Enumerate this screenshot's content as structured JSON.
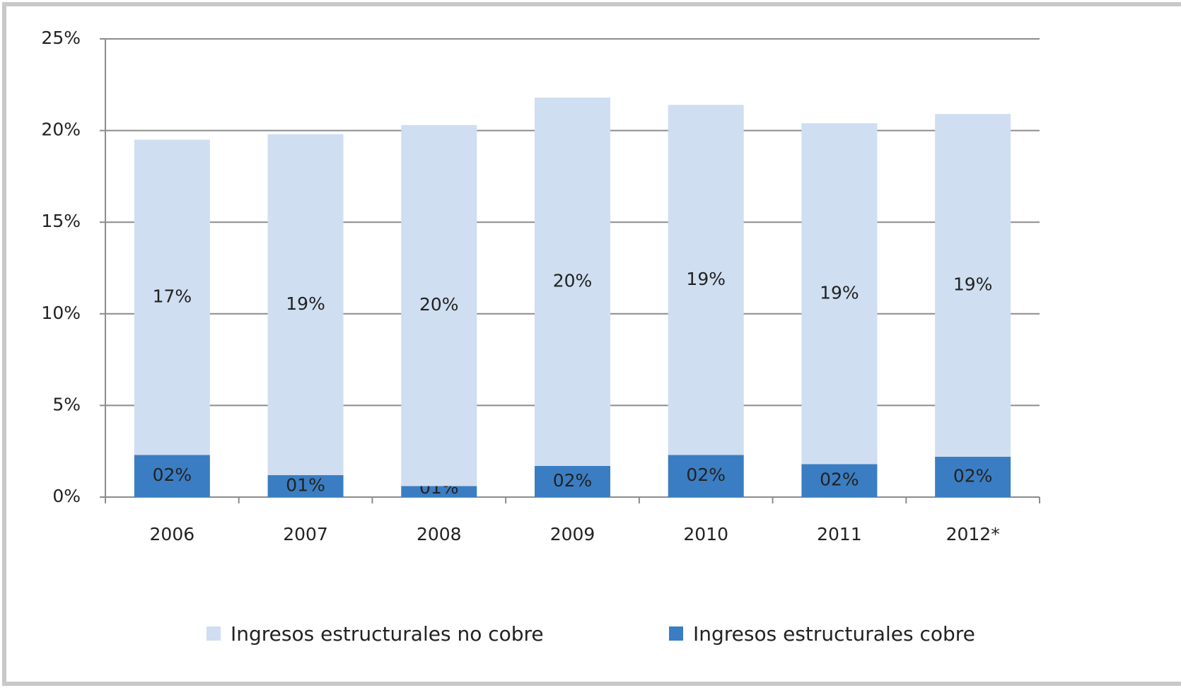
{
  "chart_data": {
    "type": "stacked-bar",
    "categories": [
      "2006",
      "2007",
      "2008",
      "2009",
      "2010",
      "2011",
      "2012*"
    ],
    "series": [
      {
        "name": "Ingresos estructurales no cobre",
        "color": "#cfdef1",
        "values": [
          17.2,
          18.6,
          19.7,
          20.1,
          19.1,
          18.6,
          18.7
        ],
        "value_labels": [
          "17%",
          "19%",
          "20%",
          "20%",
          "19%",
          "19%",
          "19%"
        ]
      },
      {
        "name": "Ingresos estructurales cobre",
        "color": "#3b7dc2",
        "values": [
          2.3,
          1.2,
          0.6,
          1.7,
          2.3,
          1.8,
          2.2
        ],
        "value_labels": [
          "02%",
          "01%",
          "01%",
          "02%",
          "02%",
          "02%",
          "02%"
        ]
      }
    ],
    "stack_order": [
      1,
      0
    ],
    "ylim": [
      0,
      25
    ],
    "yticks": [
      {
        "value": 0,
        "label": "0%"
      },
      {
        "value": 5,
        "label": "5%"
      },
      {
        "value": 10,
        "label": "10%"
      },
      {
        "value": 15,
        "label": "15%"
      },
      {
        "value": 20,
        "label": "20%"
      },
      {
        "value": 25,
        "label": "25%"
      }
    ],
    "grid": true
  }
}
